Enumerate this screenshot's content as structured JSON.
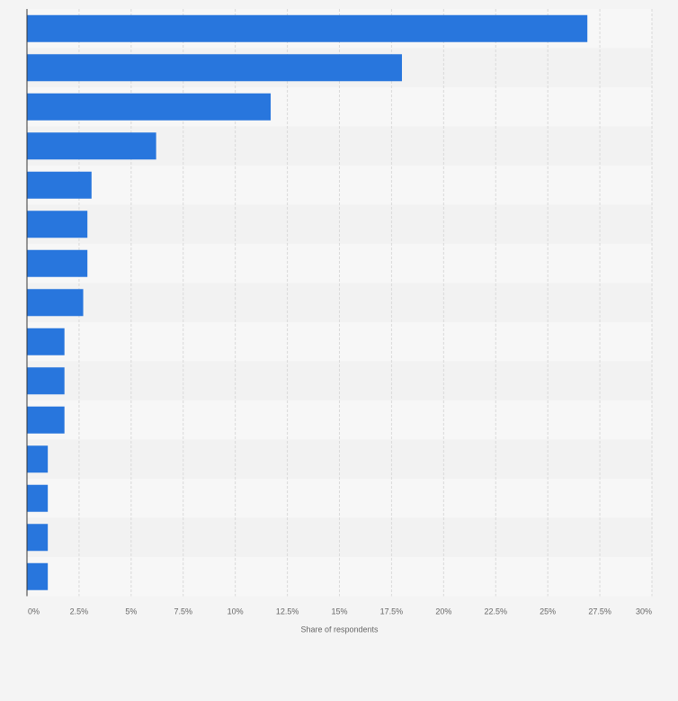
{
  "colors": {
    "bar": "#2876dd",
    "page_background": "#f4f4f4",
    "band_light": "#f7f7f7",
    "band_dark": "#f2f2f2",
    "gridline": "#d9d9d9",
    "axis_line": "#333333"
  },
  "chart_data": {
    "type": "bar",
    "orientation": "horizontal",
    "title": "",
    "xlabel": "Share of respondents",
    "ylabel": "",
    "category_labels_visible": false,
    "x_unit": "%",
    "xlim": [
      0,
      30
    ],
    "x_ticks": [
      0,
      2.5,
      5,
      7.5,
      10,
      12.5,
      15,
      17.5,
      20,
      22.5,
      25,
      27.5,
      30
    ],
    "x_tick_labels": [
      "0%",
      "2.5%",
      "5%",
      "7.5%",
      "10%",
      "12.5%",
      "15%",
      "17.5%",
      "20%",
      "22.5%",
      "25%",
      "27.5%",
      "30%"
    ],
    "grid": true,
    "legend": "none",
    "series": [
      {
        "values": [
          26.9,
          18.0,
          11.7,
          6.2,
          3.1,
          2.9,
          2.9,
          2.7,
          1.8,
          1.8,
          1.8,
          1.0,
          1.0,
          1.0,
          1.0
        ]
      }
    ]
  }
}
